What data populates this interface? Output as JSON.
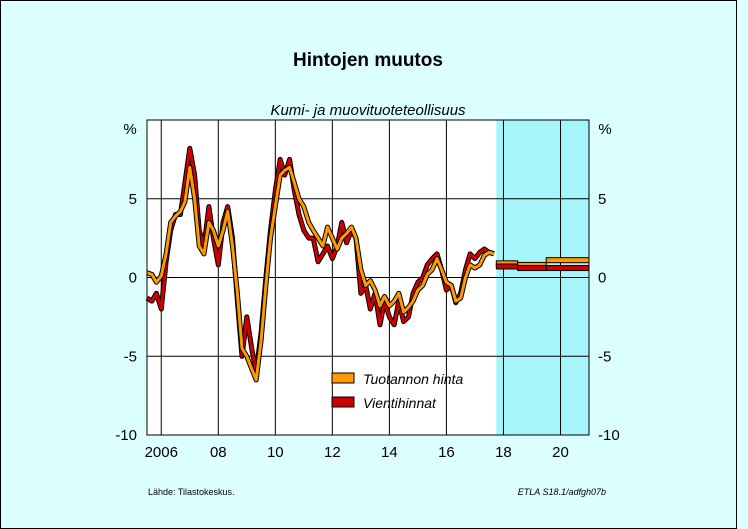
{
  "chart_data": {
    "type": "line",
    "title": "Hintojen muutos",
    "subtitle": "Kumi- ja muovituoteteollisuus",
    "ylabel_left": "%",
    "ylabel_right": "%",
    "ylim": [
      -10,
      10
    ],
    "yticks": [
      -10,
      -5,
      0,
      5
    ],
    "xlim": [
      2005.5,
      2021.0
    ],
    "xticks": [
      {
        "value": 2006,
        "label": "2006"
      },
      {
        "value": 2008,
        "label": "08"
      },
      {
        "value": 2010,
        "label": "10"
      },
      {
        "value": 2012,
        "label": "12"
      },
      {
        "value": 2014,
        "label": "14"
      },
      {
        "value": 2016,
        "label": "16"
      },
      {
        "value": 2018,
        "label": "18"
      },
      {
        "value": 2020,
        "label": "20"
      }
    ],
    "forecast_start": 2017.75,
    "grid": true,
    "legend_position": "bottom-center",
    "series": [
      {
        "name": "Tuotannon hinta",
        "color": "#ff9900",
        "points": [
          [
            2005.5,
            0.3
          ],
          [
            2005.67,
            0.2
          ],
          [
            2005.83,
            -0.3
          ],
          [
            2006.0,
            0.1
          ],
          [
            2006.17,
            1.5
          ],
          [
            2006.33,
            3.5
          ],
          [
            2006.5,
            3.9
          ],
          [
            2006.67,
            4.2
          ],
          [
            2006.83,
            4.8
          ],
          [
            2007.0,
            7.0
          ],
          [
            2007.17,
            5.0
          ],
          [
            2007.33,
            2.0
          ],
          [
            2007.5,
            1.5
          ],
          [
            2007.67,
            3.5
          ],
          [
            2007.83,
            3.0
          ],
          [
            2008.0,
            2.0
          ],
          [
            2008.17,
            3.0
          ],
          [
            2008.33,
            4.2
          ],
          [
            2008.5,
            2.0
          ],
          [
            2008.67,
            -1.0
          ],
          [
            2008.83,
            -4.5
          ],
          [
            2009.0,
            -5.0
          ],
          [
            2009.17,
            -5.8
          ],
          [
            2009.33,
            -6.5
          ],
          [
            2009.5,
            -4.0
          ],
          [
            2009.67,
            -0.5
          ],
          [
            2009.83,
            2.5
          ],
          [
            2010.0,
            4.5
          ],
          [
            2010.17,
            6.5
          ],
          [
            2010.33,
            6.8
          ],
          [
            2010.5,
            7.0
          ],
          [
            2010.67,
            6.0
          ],
          [
            2010.83,
            5.0
          ],
          [
            2011.0,
            4.5
          ],
          [
            2011.17,
            3.5
          ],
          [
            2011.33,
            3.0
          ],
          [
            2011.5,
            2.5
          ],
          [
            2011.67,
            2.0
          ],
          [
            2011.83,
            3.2
          ],
          [
            2012.0,
            2.5
          ],
          [
            2012.17,
            1.8
          ],
          [
            2012.33,
            2.5
          ],
          [
            2012.5,
            2.8
          ],
          [
            2012.67,
            3.2
          ],
          [
            2012.83,
            2.5
          ],
          [
            2013.0,
            0.5
          ],
          [
            2013.17,
            -0.5
          ],
          [
            2013.33,
            -0.2
          ],
          [
            2013.5,
            -0.8
          ],
          [
            2013.67,
            -1.8
          ],
          [
            2013.83,
            -1.2
          ],
          [
            2014.0,
            -1.8
          ],
          [
            2014.17,
            -1.5
          ],
          [
            2014.33,
            -1.0
          ],
          [
            2014.5,
            -2.2
          ],
          [
            2014.67,
            -1.9
          ],
          [
            2014.83,
            -1.5
          ],
          [
            2015.0,
            -0.8
          ],
          [
            2015.17,
            -0.5
          ],
          [
            2015.33,
            0.2
          ],
          [
            2015.5,
            0.5
          ],
          [
            2015.67,
            1.2
          ],
          [
            2015.83,
            0.5
          ],
          [
            2016.0,
            -0.3
          ],
          [
            2016.17,
            -0.5
          ],
          [
            2016.33,
            -1.5
          ],
          [
            2016.5,
            -1.3
          ],
          [
            2016.67,
            0.0
          ],
          [
            2016.83,
            0.8
          ],
          [
            2017.0,
            0.6
          ],
          [
            2017.17,
            0.8
          ],
          [
            2017.33,
            1.4
          ],
          [
            2017.5,
            1.6
          ],
          [
            2017.67,
            1.5
          ]
        ]
      },
      {
        "name": "Vientihinnat",
        "color": "#cc0000",
        "points": [
          [
            2005.5,
            -1.3
          ],
          [
            2005.67,
            -1.5
          ],
          [
            2005.83,
            -1.0
          ],
          [
            2006.0,
            -2.0
          ],
          [
            2006.17,
            1.0
          ],
          [
            2006.33,
            3.0
          ],
          [
            2006.5,
            4.0
          ],
          [
            2006.67,
            4.0
          ],
          [
            2006.83,
            6.0
          ],
          [
            2007.0,
            8.2
          ],
          [
            2007.17,
            6.5
          ],
          [
            2007.33,
            3.0
          ],
          [
            2007.5,
            2.0
          ],
          [
            2007.67,
            4.5
          ],
          [
            2007.83,
            2.5
          ],
          [
            2008.0,
            0.8
          ],
          [
            2008.17,
            3.5
          ],
          [
            2008.33,
            4.5
          ],
          [
            2008.5,
            2.5
          ],
          [
            2008.67,
            -1.5
          ],
          [
            2008.83,
            -5.0
          ],
          [
            2009.0,
            -2.5
          ],
          [
            2009.17,
            -4.5
          ],
          [
            2009.33,
            -6.0
          ],
          [
            2009.5,
            -3.5
          ],
          [
            2009.67,
            0.0
          ],
          [
            2009.83,
            3.0
          ],
          [
            2010.0,
            5.5
          ],
          [
            2010.17,
            7.5
          ],
          [
            2010.33,
            6.5
          ],
          [
            2010.5,
            7.5
          ],
          [
            2010.67,
            5.5
          ],
          [
            2010.83,
            4.0
          ],
          [
            2011.0,
            3.0
          ],
          [
            2011.17,
            2.5
          ],
          [
            2011.33,
            2.5
          ],
          [
            2011.5,
            1.0
          ],
          [
            2011.67,
            1.5
          ],
          [
            2011.83,
            2.0
          ],
          [
            2012.0,
            1.2
          ],
          [
            2012.17,
            2.0
          ],
          [
            2012.33,
            3.5
          ],
          [
            2012.5,
            2.2
          ],
          [
            2012.67,
            3.0
          ],
          [
            2012.83,
            2.5
          ],
          [
            2013.0,
            -1.0
          ],
          [
            2013.17,
            -0.5
          ],
          [
            2013.33,
            -2.0
          ],
          [
            2013.5,
            -1.0
          ],
          [
            2013.67,
            -3.0
          ],
          [
            2013.83,
            -1.5
          ],
          [
            2014.0,
            -2.5
          ],
          [
            2014.17,
            -3.0
          ],
          [
            2014.33,
            -1.5
          ],
          [
            2014.5,
            -2.8
          ],
          [
            2014.67,
            -2.5
          ],
          [
            2014.83,
            -1.0
          ],
          [
            2015.0,
            -0.3
          ],
          [
            2015.17,
            0.0
          ],
          [
            2015.33,
            0.8
          ],
          [
            2015.5,
            1.2
          ],
          [
            2015.67,
            1.5
          ],
          [
            2015.83,
            0.5
          ],
          [
            2016.0,
            -0.8
          ],
          [
            2016.17,
            -0.5
          ],
          [
            2016.33,
            -1.6
          ],
          [
            2016.5,
            -1.0
          ],
          [
            2016.67,
            0.5
          ],
          [
            2016.83,
            1.5
          ],
          [
            2017.0,
            1.2
          ],
          [
            2017.17,
            1.6
          ],
          [
            2017.33,
            1.8
          ],
          [
            2017.5,
            1.6
          ],
          [
            2017.67,
            1.5
          ]
        ]
      }
    ],
    "forecast_series": [
      {
        "name": "Tuotannon hinta",
        "segments": [
          [
            2017.75,
            2018.5,
            0.9
          ],
          [
            2018.5,
            2019.5,
            0.8
          ],
          [
            2019.5,
            2021.0,
            1.1
          ]
        ]
      },
      {
        "name": "Vientihinnat",
        "segments": [
          [
            2017.75,
            2018.5,
            0.7
          ],
          [
            2018.5,
            2019.5,
            0.6
          ],
          [
            2019.5,
            2021.0,
            0.6
          ]
        ]
      }
    ]
  },
  "footer": {
    "source": "Lähde:   Tilastokeskus.",
    "code": "ETLA S18.1/adfgh07b"
  }
}
